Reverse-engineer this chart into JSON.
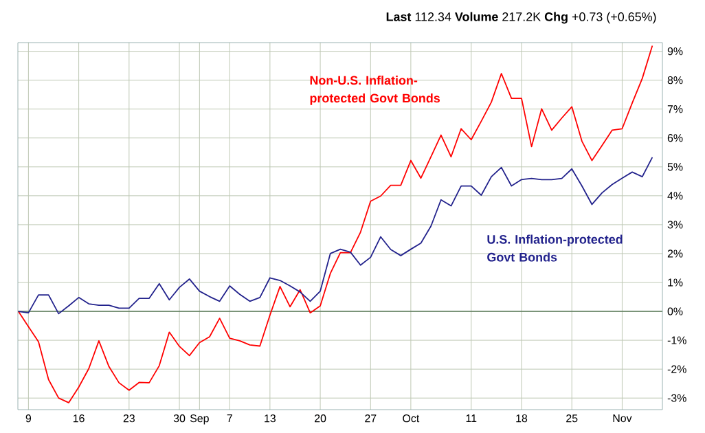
{
  "chart_data": {
    "type": "line",
    "annotations": [
      "**Last** 112.34 **Volume** 217.2K **Chg** +0.73 (+0.65%)"
    ],
    "categories": [
      null,
      "9",
      null,
      null,
      null,
      null,
      "16",
      null,
      null,
      null,
      null,
      "23",
      null,
      null,
      null,
      null,
      "30",
      null,
      "Sep",
      null,
      null,
      "7",
      null,
      null,
      null,
      "13",
      null,
      null,
      null,
      null,
      "20",
      null,
      null,
      null,
      null,
      "27",
      null,
      null,
      null,
      "Oct",
      null,
      null,
      null,
      null,
      null,
      "11",
      null,
      null,
      null,
      null,
      "18",
      null,
      null,
      null,
      null,
      "25",
      null,
      null,
      null,
      null,
      "Nov",
      null,
      null,
      null
    ],
    "series": [
      {
        "name": "Non-U.S. Inflation-protected Govt Bonds",
        "color": "#ff0000",
        "values": [
          0,
          -0.53,
          -1.05,
          -2.36,
          -3.0,
          -3.16,
          -2.62,
          -1.98,
          -1.02,
          -1.91,
          -2.47,
          -2.73,
          -2.46,
          -2.47,
          -1.88,
          -0.72,
          -1.21,
          -1.53,
          -1.08,
          -0.88,
          -0.24,
          -0.93,
          -1.02,
          -1.16,
          -1.2,
          -0.13,
          0.86,
          0.16,
          0.75,
          -0.05,
          0.19,
          1.31,
          2.03,
          2.03,
          2.74,
          3.81,
          3.99,
          4.36,
          4.36,
          5.22,
          4.61,
          5.35,
          6.1,
          5.35,
          6.32,
          5.94,
          6.58,
          7.24,
          8.23,
          7.37,
          7.37,
          5.7,
          7.01,
          6.27,
          6.69,
          7.08,
          5.89,
          5.22,
          5.74,
          6.27,
          6.32,
          7.21,
          8.06,
          9.19
        ]
      },
      {
        "name": "U.S. Inflation-protected Govt Bonds",
        "color": "#22228c",
        "values": [
          0,
          -0.05,
          0.57,
          0.57,
          -0.08,
          0.19,
          0.48,
          0.26,
          0.21,
          0.21,
          0.11,
          0.11,
          0.45,
          0.45,
          0.96,
          0.4,
          0.83,
          1.12,
          0.7,
          0.51,
          0.35,
          0.88,
          0.59,
          0.35,
          0.48,
          1.16,
          1.07,
          0.88,
          0.67,
          0.35,
          0.7,
          2.0,
          2.15,
          2.05,
          1.6,
          1.87,
          2.58,
          2.14,
          1.93,
          2.15,
          2.36,
          2.95,
          3.86,
          3.65,
          4.34,
          4.34,
          4.02,
          4.66,
          4.98,
          4.34,
          4.56,
          4.6,
          4.56,
          4.56,
          4.6,
          4.93,
          4.34,
          3.7,
          4.1,
          4.39,
          4.61,
          4.82,
          4.66,
          5.33
        ]
      }
    ],
    "ylim": [
      -3.4,
      9.3
    ],
    "yticks": [
      {
        "value": -3,
        "label": "-3%"
      },
      {
        "value": -2,
        "label": "-2%"
      },
      {
        "value": -1,
        "label": "-1%"
      },
      {
        "value": 0,
        "label": "0%"
      },
      {
        "value": 1,
        "label": "1%"
      },
      {
        "value": 2,
        "label": "2%"
      },
      {
        "value": 3,
        "label": "3%"
      },
      {
        "value": 4,
        "label": "4%"
      },
      {
        "value": 5,
        "label": "5%"
      },
      {
        "value": 6,
        "label": "6%"
      },
      {
        "value": 7,
        "label": "7%"
      },
      {
        "value": 8,
        "label": "8%"
      },
      {
        "value": 9,
        "label": "9%"
      }
    ],
    "ref_lines": [
      {
        "axis": "y",
        "value": 0,
        "color": "#5a7a5a"
      }
    ],
    "grid": true,
    "legend": false,
    "marker": "none",
    "line_style": "solid"
  }
}
